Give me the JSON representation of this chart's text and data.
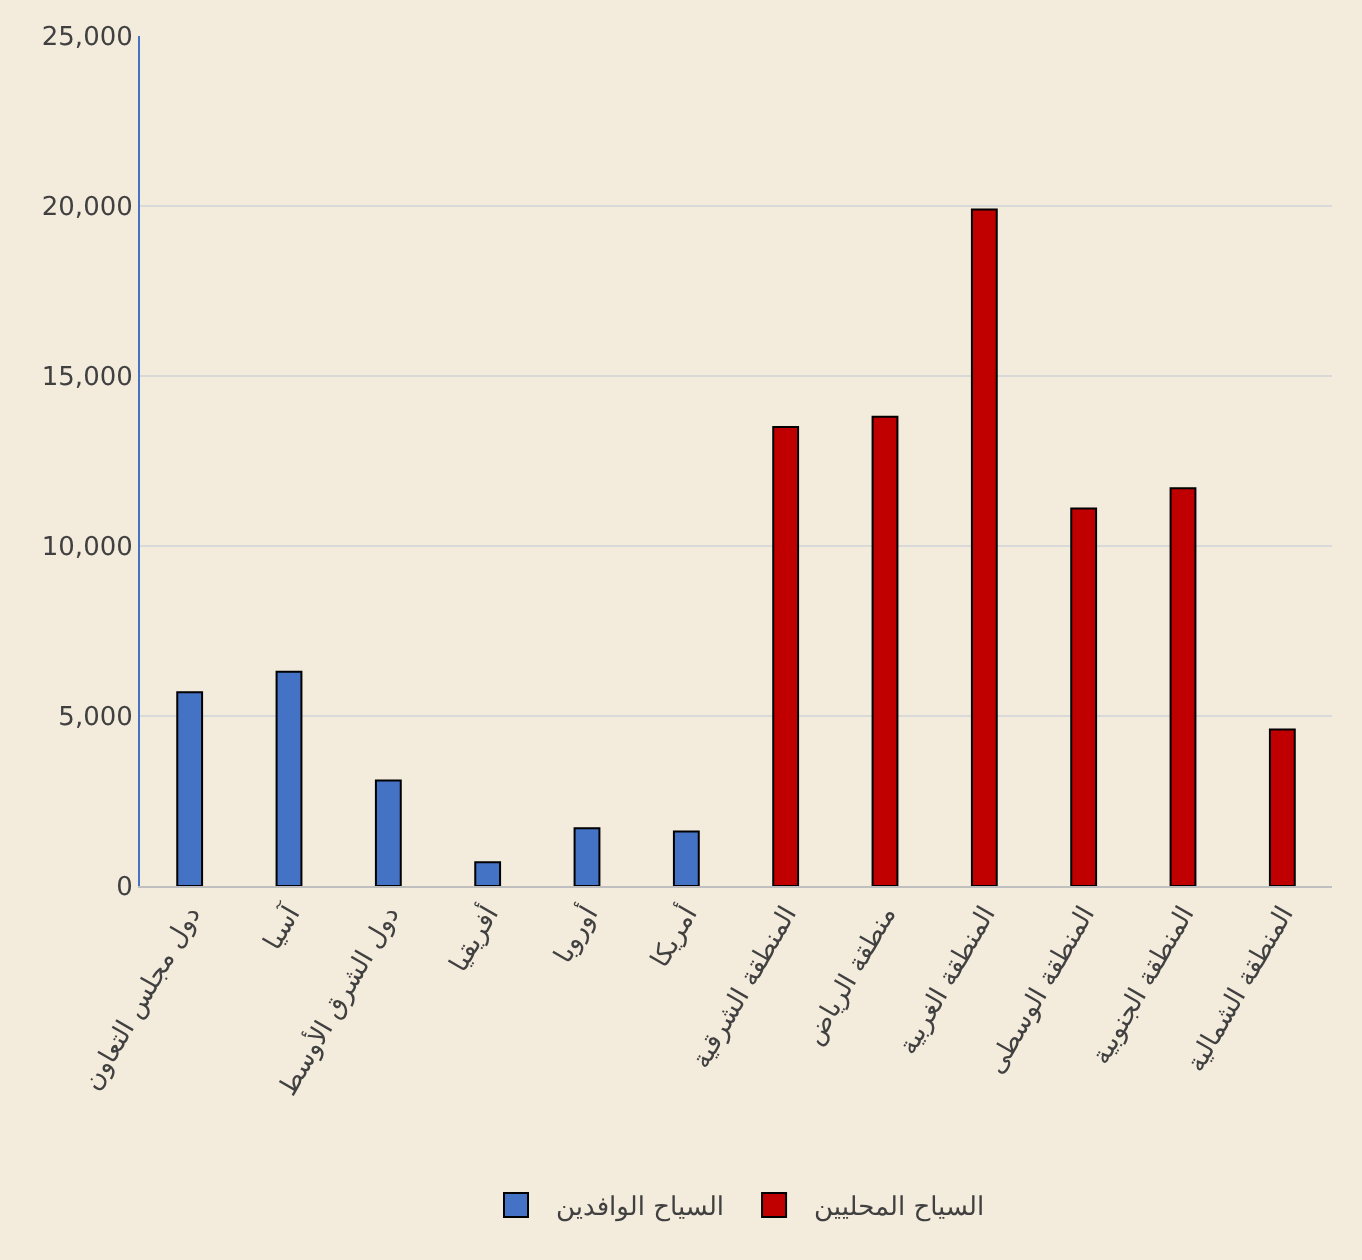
{
  "chart_data": {
    "type": "bar",
    "categories": [
      "دول مجلس التعاون",
      "آسيا",
      "دول الشرق الأوسط",
      "أفريقيا",
      "أوروبا",
      "أمريكا",
      "المنطقة الشرقية",
      "منطقة الرياض",
      "المنطقة الغربية",
      "المنطقة الوسطى",
      "المنطقة الجنوبية",
      "المنطقة الشمالية"
    ],
    "series": [
      {
        "name": "السياح الوافدين",
        "color": "#4472c4",
        "values": [
          5700,
          6300,
          3100,
          700,
          1700,
          1600,
          null,
          null,
          null,
          null,
          null,
          null
        ]
      },
      {
        "name": "السياح المحليين",
        "color": "#c00000",
        "values": [
          null,
          null,
          null,
          null,
          null,
          null,
          13500,
          13800,
          19900,
          11100,
          11700,
          4600
        ]
      }
    ],
    "ylim": [
      0,
      25000
    ],
    "yticks": [
      {
        "value": 0,
        "label": "0"
      },
      {
        "value": 5000,
        "label": "5,000"
      },
      {
        "value": 10000,
        "label": "10,000"
      },
      {
        "value": 15000,
        "label": "15,000"
      },
      {
        "value": 20000,
        "label": "20,000"
      },
      {
        "value": 25000,
        "label": "25,000"
      }
    ],
    "grid": "y",
    "legend": "bottom"
  }
}
